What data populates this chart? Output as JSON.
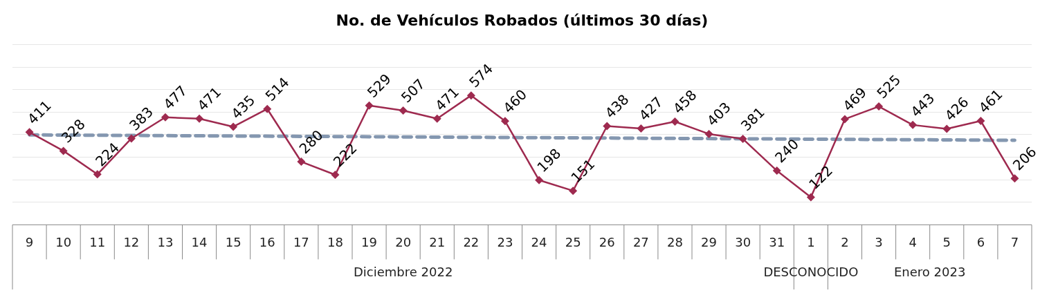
{
  "chart_data": {
    "type": "line",
    "title": "No. de Vehículos Robados (últimos 30 días)",
    "categories": [
      "9",
      "10",
      "11",
      "12",
      "13",
      "14",
      "15",
      "16",
      "17",
      "18",
      "19",
      "20",
      "21",
      "22",
      "23",
      "24",
      "25",
      "26",
      "27",
      "28",
      "29",
      "30",
      "31",
      "1",
      "2",
      "3",
      "4",
      "5",
      "6",
      "7"
    ],
    "series": [
      {
        "color": "#9e2a4f",
        "marker": "diamond",
        "line_style": "solid",
        "values": [
          411,
          328,
          224,
          383,
          477,
          471,
          435,
          514,
          280,
          222,
          529,
          507,
          471,
          574,
          460,
          198,
          151,
          438,
          427,
          458,
          403,
          381,
          240,
          122,
          469,
          525,
          443,
          426,
          461,
          206
        ],
        "value_labels": [
          "411",
          "328",
          "224",
          "383",
          "477",
          "471",
          "435",
          "514",
          "280",
          "222",
          "529",
          "507",
          "471",
          "574",
          "460",
          "198",
          "151",
          "438",
          "427",
          "458",
          "403",
          "381",
          "240",
          "122",
          "469",
          "525",
          "443",
          "426",
          "461",
          "206"
        ]
      },
      {
        "type": "line",
        "color": "#8497b0",
        "marker": "none",
        "line_style": "dashed",
        "values": [
          399,
          null,
          null,
          null,
          null,
          null,
          null,
          null,
          null,
          null,
          null,
          null,
          null,
          null,
          null,
          null,
          null,
          null,
          null,
          null,
          null,
          null,
          null,
          null,
          null,
          null,
          null,
          null,
          null,
          375
        ]
      }
    ],
    "ylim": [
      0,
      800
    ],
    "yticks": [
      {
        "value": 100,
        "label": null
      },
      {
        "value": 200,
        "label": null
      },
      {
        "value": 300,
        "label": null
      },
      {
        "value": 400,
        "label": null
      },
      {
        "value": 500,
        "label": null
      },
      {
        "value": 600,
        "label": null
      },
      {
        "value": 700,
        "label": null
      },
      {
        "value": 800,
        "label": null
      }
    ],
    "tick_labels": "x",
    "grid": "y",
    "legend": false,
    "annotations": [
      "Diciembre 2022",
      "DESCONOCIDO",
      "Enero 2023"
    ]
  }
}
